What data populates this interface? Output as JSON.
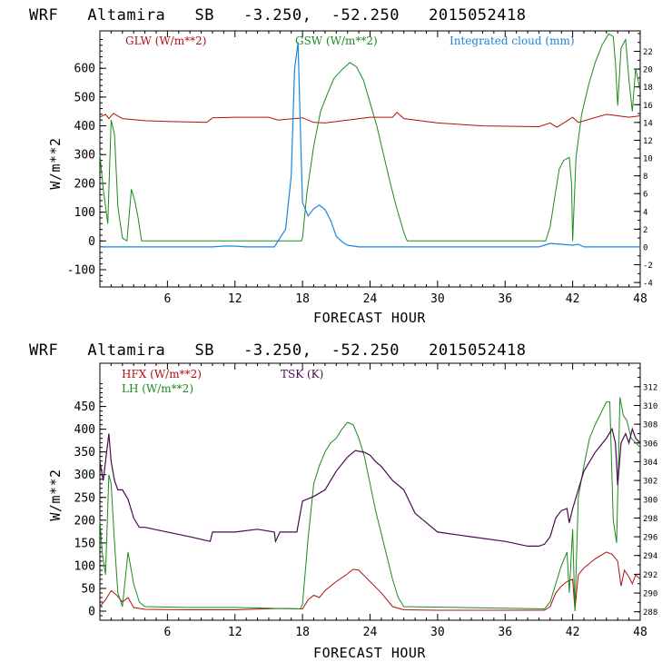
{
  "chart_data": [
    {
      "type": "line",
      "title": "WRF   Altamira   SB   -3.250,  -52.250   2015052418",
      "xlabel": "FORECAST HOUR",
      "ylabel": "W/m**2",
      "xlim": [
        0,
        48
      ],
      "ylim": [
        -160,
        730
      ],
      "xticks": [
        6,
        12,
        18,
        24,
        30,
        36,
        42,
        48
      ],
      "yticks": [
        -100,
        0,
        100,
        200,
        300,
        400,
        500,
        600
      ],
      "y2lim": [
        -4.5,
        24.3
      ],
      "y2ticks": [
        -4,
        -2,
        0,
        2,
        4,
        6,
        8,
        10,
        12,
        14,
        16,
        18,
        20,
        22
      ],
      "series": [
        {
          "name": "GLW (W/m**2)",
          "color": "#b01010",
          "axis": "left",
          "x": [
            0,
            0.5,
            0.8,
            1.2,
            2,
            4,
            6,
            9.5,
            10,
            12,
            15,
            15.8,
            18,
            19,
            20,
            24,
            26,
            26.4,
            27,
            30,
            34,
            39,
            40,
            40.6,
            42,
            42.5,
            45,
            47,
            48
          ],
          "y": [
            430,
            440,
            425,
            443,
            425,
            418,
            415,
            412,
            428,
            430,
            430,
            420,
            428,
            412,
            410,
            430,
            430,
            447,
            425,
            410,
            400,
            397,
            410,
            395,
            430,
            412,
            440,
            430,
            435
          ]
        },
        {
          "name": "GSW (W/m**2)",
          "color": "#1c8a1c",
          "axis": "left",
          "x": [
            0,
            0.3,
            0.7,
            1.0,
            1.3,
            1.6,
            2.0,
            2.4,
            2.8,
            3.1,
            3.4,
            3.7,
            17.9,
            18.0,
            18.4,
            19.0,
            19.6,
            20.2,
            20.8,
            21.5,
            22.2,
            22.8,
            23.4,
            24.0,
            24.6,
            25.2,
            25.8,
            26.4,
            27.0,
            27.3,
            39.6,
            40.0,
            40.4,
            40.8,
            41.2,
            41.7,
            41.9,
            42.0,
            42.3,
            42.8,
            43.4,
            44.0,
            44.6,
            45.2,
            45.6,
            45.8,
            46.0,
            46.3,
            46.7,
            47.0,
            47.3,
            47.6,
            48.0
          ],
          "y": [
            300,
            180,
            60,
            420,
            370,
            120,
            10,
            0,
            180,
            140,
            80,
            0,
            0,
            10,
            170,
            330,
            450,
            510,
            565,
            595,
            620,
            605,
            560,
            480,
            400,
            300,
            200,
            110,
            30,
            0,
            0,
            50,
            150,
            250,
            280,
            290,
            200,
            0,
            290,
            440,
            540,
            620,
            680,
            720,
            710,
            620,
            470,
            670,
            700,
            560,
            450,
            600,
            520
          ]
        },
        {
          "name": "Integrated cloud (mm)",
          "color": "#1a86e0",
          "axis": "right",
          "x": [
            0,
            10,
            11,
            12,
            13,
            15.5,
            16.0,
            16.5,
            17.0,
            17.3,
            17.6,
            17.8,
            18.0,
            18.5,
            19.0,
            19.5,
            20.0,
            20.5,
            21.0,
            21.5,
            22.0,
            23.0,
            39.0,
            39.5,
            40.0,
            41.0,
            42.0,
            42.5,
            43.0,
            48.0
          ],
          "y": [
            0,
            0,
            0.1,
            0.1,
            0,
            0,
            1.0,
            2.0,
            8.0,
            20.0,
            23.0,
            14.0,
            5.0,
            3.5,
            4.3,
            4.7,
            4.2,
            3.0,
            1.2,
            0.6,
            0.2,
            0,
            0,
            0.2,
            0.4,
            0.3,
            0.2,
            0.3,
            0,
            0
          ]
        }
      ]
    },
    {
      "type": "line",
      "title": "WRF   Altamira   SB   -3.250,  -52.250   2015052418",
      "xlabel": "FORECAST HOUR",
      "ylabel": "W/m**2",
      "xlim": [
        0,
        48
      ],
      "ylim": [
        -20,
        545
      ],
      "xticks": [
        6,
        12,
        18,
        24,
        30,
        36,
        42,
        48
      ],
      "yticks": [
        0,
        50,
        100,
        150,
        200,
        250,
        300,
        350,
        400,
        450
      ],
      "y2lim": [
        287.1,
        314.5
      ],
      "y2ticks": [
        288,
        290,
        292,
        294,
        296,
        298,
        300,
        302,
        304,
        306,
        308,
        310,
        312
      ],
      "series": [
        {
          "name": "HFX (W/m**2)",
          "color": "#b01010",
          "axis": "left",
          "x": [
            0,
            0.5,
            1.0,
            1.5,
            2.0,
            2.5,
            3.0,
            4.0,
            8.0,
            12.0,
            16.0,
            18.0,
            18.5,
            19.0,
            19.5,
            20.0,
            21.0,
            22.0,
            22.5,
            23.0,
            24.0,
            25.0,
            26.0,
            27.0,
            30.0,
            36.0,
            39.5,
            40.0,
            40.5,
            41.0,
            41.5,
            42.0,
            42.2,
            42.5,
            43.0,
            44.0,
            45.0,
            45.5,
            46.0,
            46.3,
            46.6,
            47.0,
            47.3,
            47.6,
            48.0
          ],
          "y": [
            10,
            25,
            45,
            35,
            20,
            30,
            8,
            4,
            3,
            3,
            6,
            5,
            25,
            35,
            30,
            45,
            65,
            82,
            92,
            90,
            65,
            40,
            10,
            3,
            2,
            2,
            2,
            10,
            40,
            55,
            65,
            70,
            3,
            80,
            95,
            115,
            130,
            125,
            110,
            55,
            90,
            75,
            60,
            80,
            70
          ]
        },
        {
          "name": "LH (W/m**2)",
          "color": "#1c8a1c",
          "axis": "left",
          "x": [
            0,
            0.2,
            0.5,
            0.8,
            1.0,
            1.3,
            1.6,
            2.0,
            2.5,
            3.0,
            3.5,
            4.0,
            8.0,
            12.0,
            17.8,
            18.0,
            18.5,
            19.0,
            19.5,
            20.0,
            20.5,
            21.0,
            21.5,
            22.0,
            22.5,
            23.0,
            23.5,
            24.0,
            24.5,
            25.0,
            25.5,
            26.0,
            26.5,
            27.0,
            39.5,
            40.0,
            40.5,
            41.0,
            41.5,
            41.7,
            42.0,
            42.2,
            42.5,
            43.0,
            43.5,
            44.0,
            44.5,
            45.0,
            45.3,
            45.6,
            45.9,
            46.2,
            46.5,
            46.8,
            47.2,
            47.6,
            48.0
          ],
          "y": [
            200,
            130,
            80,
            300,
            280,
            150,
            40,
            10,
            130,
            60,
            20,
            10,
            8,
            8,
            5,
            15,
            160,
            280,
            320,
            350,
            370,
            380,
            400,
            415,
            410,
            380,
            340,
            280,
            220,
            170,
            120,
            70,
            30,
            10,
            5,
            20,
            60,
            100,
            130,
            40,
            180,
            0,
            250,
            320,
            380,
            410,
            435,
            460,
            460,
            200,
            150,
            470,
            430,
            420,
            380,
            370,
            360
          ]
        },
        {
          "name": "TSK (K)",
          "color": "#4a0a50",
          "axis": "right",
          "x": [
            0,
            0.3,
            0.6,
            0.8,
            1.0,
            1.3,
            1.6,
            2.0,
            2.5,
            3.0,
            3.5,
            4.0,
            6.0,
            8.0,
            9.8,
            10.0,
            12.0,
            14.0,
            15.5,
            15.6,
            16.0,
            17.5,
            18.0,
            19.0,
            20.0,
            21.0,
            22.0,
            22.7,
            23.5,
            24.0,
            24.5,
            25.0,
            26.0,
            27.0,
            28.0,
            30.0,
            33.0,
            36.0,
            38.0,
            39.0,
            39.5,
            40.0,
            40.5,
            41.0,
            41.5,
            41.7,
            42.0,
            42.5,
            43.0,
            44.0,
            45.0,
            45.5,
            45.8,
            46.0,
            46.3,
            46.7,
            47.0,
            47.3,
            47.6,
            48.0
          ],
          "y": [
            304,
            302,
            305,
            307,
            304,
            302,
            301,
            301,
            300,
            298,
            297,
            297,
            296.5,
            296,
            295.5,
            296.5,
            296.5,
            296.8,
            296.5,
            295.5,
            296.5,
            296.5,
            299.8,
            300.3,
            301,
            303,
            304.5,
            305.2,
            305,
            304.7,
            304,
            303.5,
            302,
            301,
            298.5,
            296.5,
            296,
            295.5,
            295,
            295,
            295.2,
            296,
            298,
            298.8,
            299,
            297.5,
            299,
            301,
            303,
            305,
            306.5,
            307.5,
            306,
            301.5,
            306,
            307,
            306,
            307.5,
            306.5,
            306
          ]
        }
      ]
    }
  ]
}
